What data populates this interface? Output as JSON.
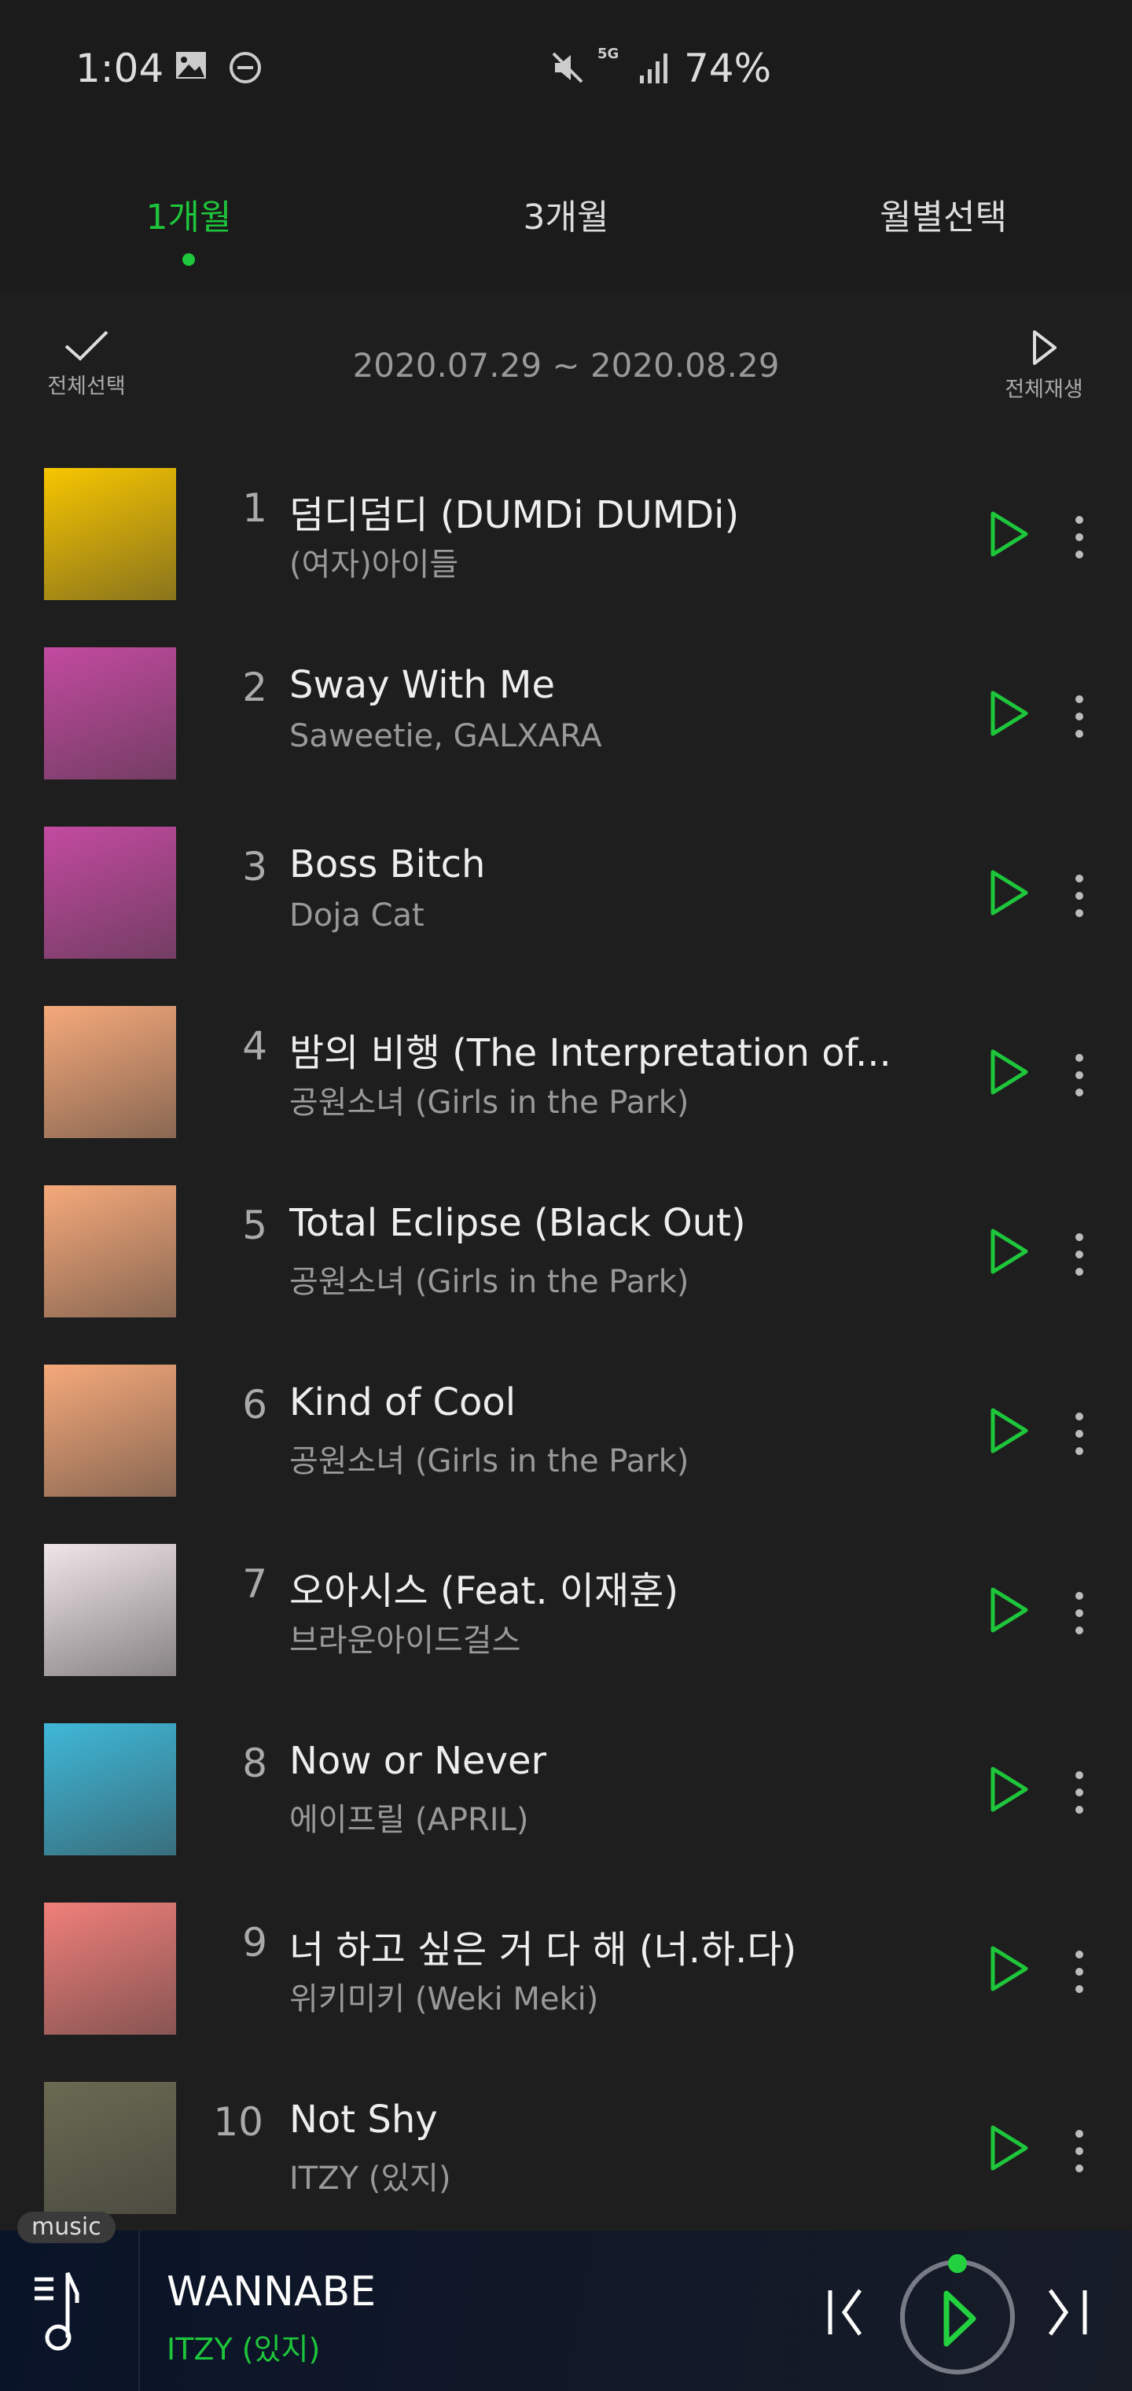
{
  "status_bar": {
    "time": "1:04",
    "battery": "74%",
    "network": "5G",
    "icons": [
      "gallery-icon",
      "dnd-icon",
      "mute-icon",
      "signal-icon"
    ]
  },
  "tabs": [
    {
      "label": "1개월",
      "active": true
    },
    {
      "label": "3개월",
      "active": false
    },
    {
      "label": "월별선택",
      "active": false
    }
  ],
  "actions": {
    "select_all": "전체선택",
    "play_all": "전체재생",
    "date_range": "2020.07.29 ~ 2020.08.29"
  },
  "colors": {
    "accent": "#1ec63b",
    "background": "#1e1e1e"
  },
  "tracks": [
    {
      "rank": "1",
      "title": "덤디덤디 (DUMDi DUMDi)",
      "artist": "(여자)아이들",
      "art": "#f7c600"
    },
    {
      "rank": "2",
      "title": "Sway With Me",
      "artist": "Saweetie, GALXARA",
      "art": "#c34aa0"
    },
    {
      "rank": "3",
      "title": "Boss Bitch",
      "artist": "Doja Cat",
      "art": "#c34aa0"
    },
    {
      "rank": "4",
      "title": "밤의 비행 (The Interpretation of...",
      "artist": "공원소녀 (Girls in the Park)",
      "art": "#f5a97a"
    },
    {
      "rank": "5",
      "title": "Total Eclipse (Black Out)",
      "artist": "공원소녀 (Girls in the Park)",
      "art": "#f5a97a"
    },
    {
      "rank": "6",
      "title": "Kind of Cool",
      "artist": "공원소녀 (Girls in the Park)",
      "art": "#f5a97a"
    },
    {
      "rank": "7",
      "title": "오아시스 (Feat. 이재훈)",
      "artist": "브라운아이드걸스",
      "art": "#f0e6ea"
    },
    {
      "rank": "8",
      "title": "Now or Never",
      "artist": "에이프릴 (APRIL)",
      "art": "#3fb8d8"
    },
    {
      "rank": "9",
      "title": "너 하고 싶은 거 다 해 (너.하.다)",
      "artist": "위키미키 (Weki Meki)",
      "art": "#f07f7a"
    },
    {
      "rank": "10",
      "title": "Not Shy",
      "artist": "ITZY (있지)",
      "art": "#6a6a52"
    }
  ],
  "player": {
    "badge": "music",
    "title": "WANNABE",
    "artist": "ITZY (있지)"
  }
}
